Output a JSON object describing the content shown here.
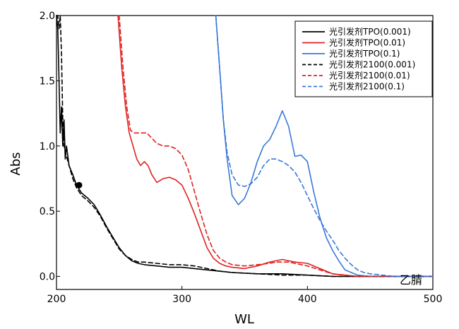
{
  "chart_data": {
    "type": "line",
    "xlabel": "WL",
    "ylabel": "Abs",
    "xlim": [
      200,
      500
    ],
    "ylim": [
      -0.1,
      2.0
    ],
    "xticks": [
      200,
      300,
      400,
      500
    ],
    "yticks": [
      0.0,
      0.5,
      1.0,
      1.5,
      2.0
    ],
    "ytick_labels": [
      "0.0",
      "0.5",
      "1.0",
      "1.5",
      "2.0"
    ],
    "annotation": "乙腈",
    "legend_position": "top-right",
    "marker_point": {
      "x": 218,
      "y": 0.7
    },
    "series": [
      {
        "name": "光引发剂TPO(0.001)",
        "color": "#000000",
        "dash": "solid",
        "x": [
          200,
          201,
          202,
          203,
          204,
          205,
          206,
          207,
          208,
          210,
          213,
          216,
          220,
          225,
          230,
          235,
          240,
          245,
          250,
          255,
          260,
          265,
          270,
          280,
          290,
          300,
          310,
          320,
          330,
          340,
          360,
          380,
          400,
          420,
          440,
          460,
          480,
          500
        ],
        "y": [
          2.0,
          1.9,
          1.5,
          1.1,
          1.3,
          1.0,
          1.2,
          0.9,
          1.0,
          0.85,
          0.78,
          0.7,
          0.64,
          0.6,
          0.55,
          0.47,
          0.38,
          0.3,
          0.22,
          0.16,
          0.12,
          0.1,
          0.09,
          0.08,
          0.07,
          0.07,
          0.06,
          0.05,
          0.04,
          0.03,
          0.02,
          0.02,
          0.01,
          0.0,
          0.0,
          0.0,
          0.0,
          0.0
        ]
      },
      {
        "name": "光引发剂TPO(0.01)",
        "color": "#e02020",
        "dash": "solid",
        "x": [
          249,
          252,
          255,
          258,
          261,
          264,
          267,
          270,
          273,
          276,
          280,
          285,
          290,
          295,
          300,
          305,
          310,
          315,
          320,
          325,
          330,
          335,
          340,
          350,
          360,
          370,
          375,
          380,
          385,
          390,
          400,
          410,
          420,
          430,
          440,
          460,
          480,
          500
        ],
        "y": [
          2.0,
          1.6,
          1.3,
          1.1,
          1.0,
          0.9,
          0.85,
          0.88,
          0.85,
          0.78,
          0.72,
          0.75,
          0.76,
          0.74,
          0.7,
          0.6,
          0.48,
          0.35,
          0.22,
          0.14,
          0.1,
          0.08,
          0.07,
          0.06,
          0.08,
          0.11,
          0.12,
          0.13,
          0.12,
          0.11,
          0.1,
          0.06,
          0.02,
          0.01,
          0.0,
          0.0,
          0.0,
          0.0
        ]
      },
      {
        "name": "光引发剂TPO(0.1)",
        "color": "#3a78d8",
        "dash": "solid",
        "x": [
          327,
          330,
          333,
          336,
          340,
          345,
          350,
          355,
          360,
          365,
          370,
          375,
          380,
          385,
          390,
          395,
          400,
          405,
          410,
          415,
          420,
          425,
          430,
          440,
          450,
          460,
          480,
          500
        ],
        "y": [
          2.0,
          1.6,
          1.2,
          0.9,
          0.62,
          0.55,
          0.6,
          0.72,
          0.88,
          1.0,
          1.05,
          1.15,
          1.27,
          1.15,
          0.92,
          0.93,
          0.88,
          0.65,
          0.45,
          0.3,
          0.2,
          0.12,
          0.05,
          0.01,
          0.0,
          0.0,
          0.0,
          0.0
        ]
      },
      {
        "name": "光引发剂2100(0.001)",
        "color": "#000000",
        "dash": "dashed",
        "x": [
          200,
          201,
          202,
          203,
          204,
          205,
          206,
          208,
          210,
          213,
          216,
          220,
          225,
          230,
          235,
          240,
          245,
          250,
          255,
          260,
          265,
          270,
          280,
          290,
          300,
          310,
          320,
          330,
          340,
          360,
          380,
          400,
          420,
          440,
          460,
          480,
          500
        ],
        "y": [
          2.0,
          2.0,
          1.9,
          2.0,
          1.7,
          1.2,
          1.0,
          0.92,
          0.85,
          0.75,
          0.68,
          0.62,
          0.58,
          0.53,
          0.46,
          0.37,
          0.29,
          0.21,
          0.16,
          0.13,
          0.11,
          0.11,
          0.1,
          0.09,
          0.09,
          0.08,
          0.06,
          0.04,
          0.03,
          0.02,
          0.01,
          0.01,
          0.0,
          0.0,
          0.0,
          0.0,
          0.0
        ]
      },
      {
        "name": "光引发剂2100(0.01)",
        "color": "#e02020",
        "dash": "dashed",
        "x": [
          250,
          253,
          256,
          259,
          262,
          265,
          268,
          272,
          276,
          280,
          285,
          290,
          295,
          300,
          305,
          310,
          315,
          320,
          325,
          330,
          335,
          340,
          350,
          360,
          370,
          375,
          380,
          385,
          390,
          400,
          410,
          420,
          430,
          440,
          460,
          480,
          500
        ],
        "y": [
          2.0,
          1.6,
          1.3,
          1.12,
          1.1,
          1.1,
          1.1,
          1.1,
          1.06,
          1.02,
          1.0,
          1.0,
          0.98,
          0.93,
          0.82,
          0.65,
          0.48,
          0.32,
          0.2,
          0.14,
          0.11,
          0.09,
          0.08,
          0.09,
          0.1,
          0.11,
          0.11,
          0.11,
          0.1,
          0.08,
          0.05,
          0.02,
          0.01,
          0.0,
          0.0,
          0.0,
          0.0
        ]
      },
      {
        "name": "光引发剂2100(0.1)",
        "color": "#3a78d8",
        "dash": "dashed",
        "x": [
          327,
          330,
          333,
          336,
          340,
          345,
          350,
          355,
          360,
          365,
          370,
          375,
          380,
          385,
          390,
          395,
          400,
          405,
          410,
          415,
          420,
          425,
          430,
          435,
          440,
          445,
          450,
          460,
          470,
          480,
          500
        ],
        "y": [
          2.0,
          1.6,
          1.2,
          0.95,
          0.78,
          0.7,
          0.69,
          0.71,
          0.76,
          0.85,
          0.9,
          0.9,
          0.88,
          0.85,
          0.8,
          0.72,
          0.62,
          0.52,
          0.43,
          0.35,
          0.28,
          0.2,
          0.14,
          0.09,
          0.05,
          0.03,
          0.02,
          0.01,
          0.0,
          0.0,
          0.0
        ]
      }
    ]
  }
}
